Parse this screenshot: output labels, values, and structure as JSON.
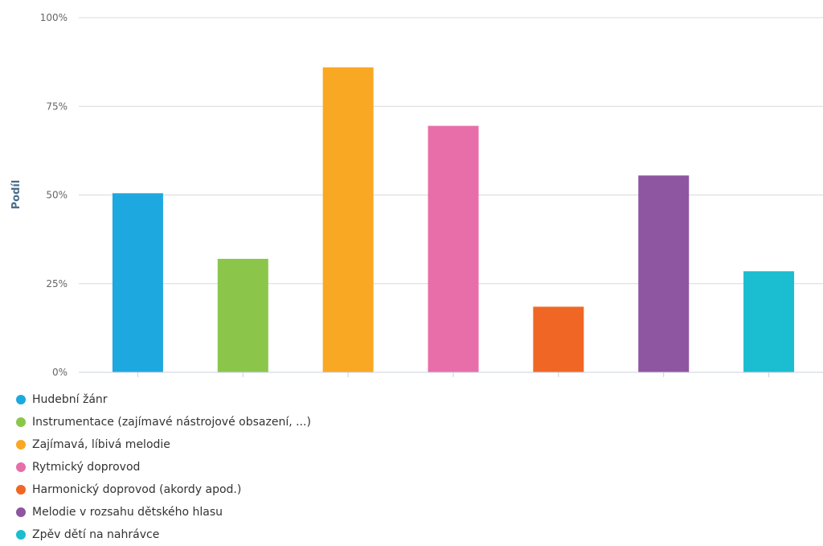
{
  "chart_data": {
    "type": "bar",
    "ylabel": "Podíl",
    "ylim": [
      0,
      100
    ],
    "yticks": [
      "0%",
      "25%",
      "50%",
      "75%",
      "100%"
    ],
    "grid": true,
    "legend_position": "bottom-left",
    "categories": [
      "Hudební žánr",
      "Instrumentace (zajímavé nástrojové obsazení, ...)",
      "Zajímavá, líbivá melodie",
      "Rytmický doprovod",
      "Harmonický doprovod (akordy apod.)",
      "Melodie v rozsahu dětského hlasu",
      "Zpěv dětí na nahrávce"
    ],
    "values": [
      50.5,
      32,
      86,
      69.5,
      18.5,
      55.5,
      28.5
    ],
    "colors": [
      "#1ea8e0",
      "#8bc64a",
      "#f9a824",
      "#e76ea9",
      "#f06725",
      "#8e55a1",
      "#1bbdd0"
    ]
  }
}
